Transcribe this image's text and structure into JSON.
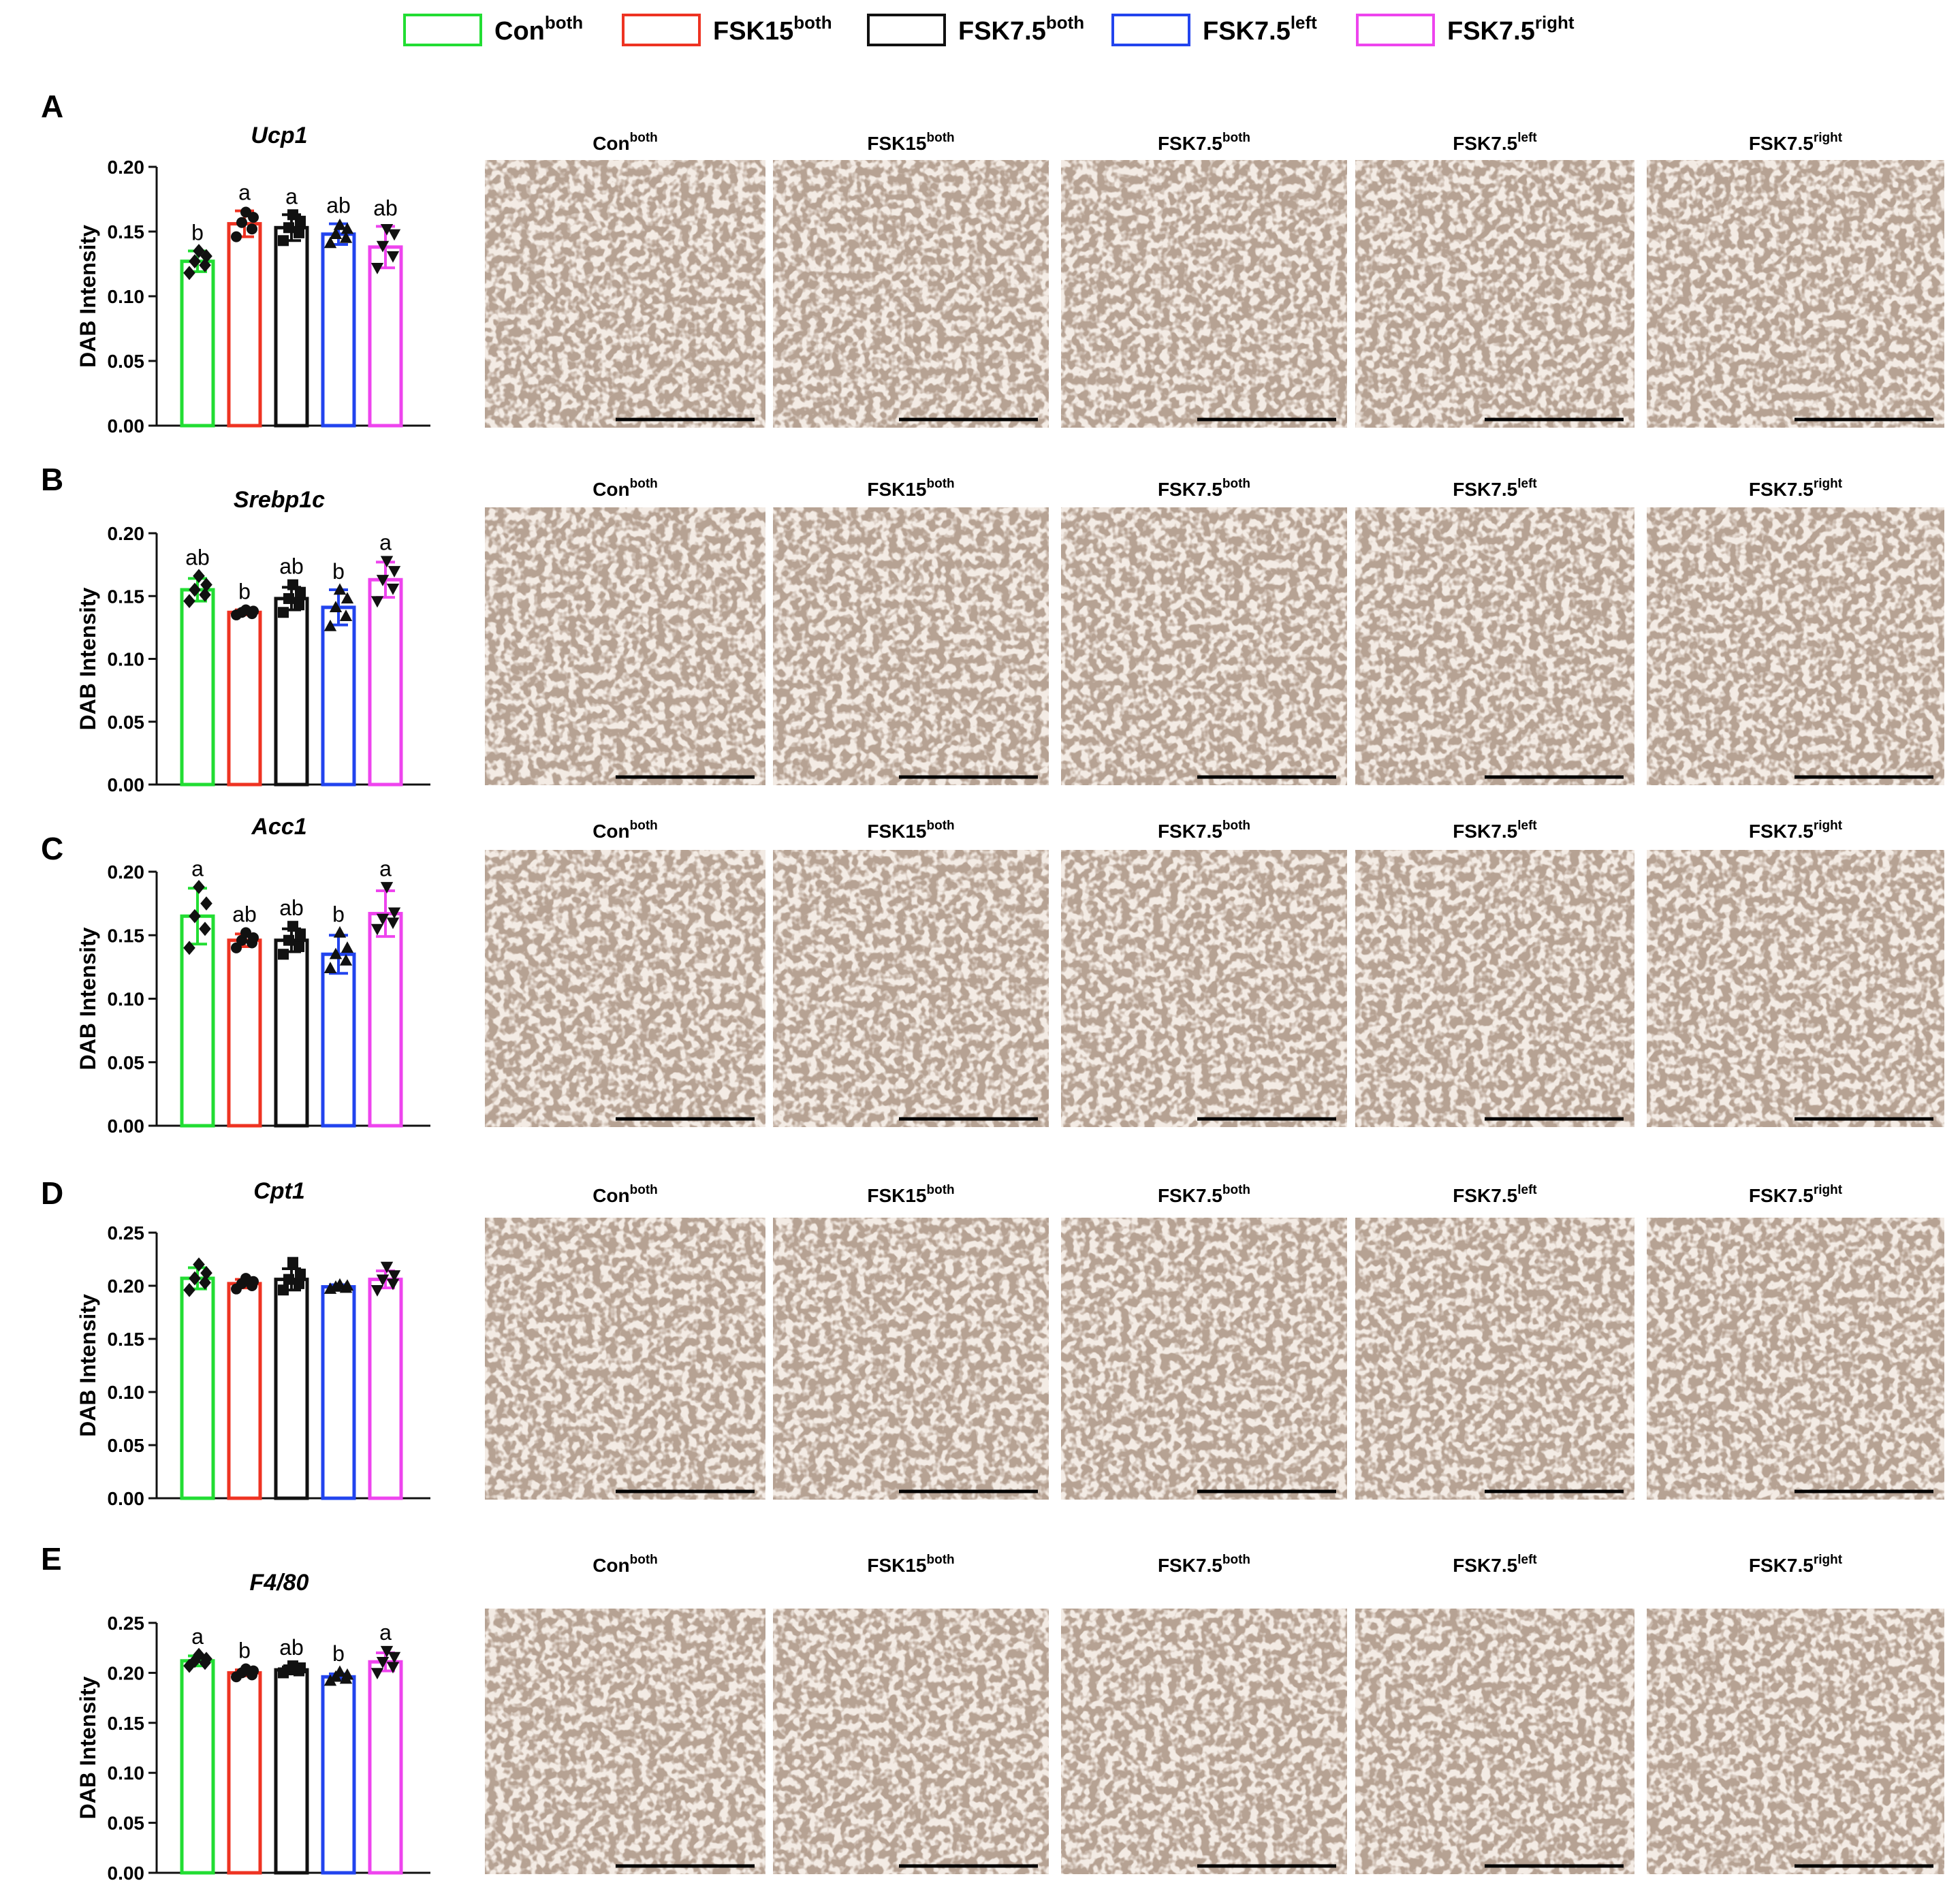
{
  "legend": [
    {
      "label": "Con",
      "sup": "both",
      "color": "#22dd33"
    },
    {
      "label": "FSK15",
      "sup": "both",
      "color": "#ee3322"
    },
    {
      "label": "FSK7.5",
      "sup": "both",
      "color": "#111111"
    },
    {
      "label": "FSK7.5",
      "sup": "left",
      "color": "#2244ee"
    },
    {
      "label": "FSK7.5",
      "sup": "right",
      "color": "#ee44ee"
    }
  ],
  "image_titles": [
    {
      "label": "Con",
      "sup": "both"
    },
    {
      "label": "FSK15",
      "sup": "both"
    },
    {
      "label": "FSK7.5",
      "sup": "both"
    },
    {
      "label": "FSK7.5",
      "sup": "left"
    },
    {
      "label": "FSK7.5",
      "sup": "right"
    }
  ],
  "chart_data": [
    {
      "type": "bar",
      "panel": "A",
      "title": "Ucp1",
      "ylabel": "DAB Intensity",
      "ylim": [
        0,
        0.2
      ],
      "yticks": [
        "0.00",
        "0.05",
        "0.10",
        "0.15",
        "0.20"
      ],
      "means": [
        0.127,
        0.156,
        0.153,
        0.148,
        0.138
      ],
      "errors": [
        0.008,
        0.01,
        0.01,
        0.008,
        0.016
      ],
      "letters": [
        "b",
        "a",
        "a",
        "ab",
        "ab"
      ],
      "marker": [
        "diamond",
        "circle",
        "square",
        "triangle",
        "triangle-down"
      ],
      "points": [
        [
          0.118,
          0.124,
          0.127,
          0.131,
          0.135
        ],
        [
          0.146,
          0.152,
          0.157,
          0.161,
          0.165
        ],
        [
          0.143,
          0.149,
          0.153,
          0.158,
          0.163
        ],
        [
          0.141,
          0.145,
          0.148,
          0.152,
          0.155
        ],
        [
          0.122,
          0.131,
          0.139,
          0.148,
          0.152
        ]
      ]
    },
    {
      "type": "bar",
      "panel": "B",
      "title": "Srebp1c",
      "ylabel": "DAB Intensity",
      "ylim": [
        0,
        0.2
      ],
      "yticks": [
        "0.00",
        "0.05",
        "0.10",
        "0.15",
        "0.20"
      ],
      "means": [
        0.155,
        0.137,
        0.148,
        0.141,
        0.163
      ],
      "errors": [
        0.009,
        0.002,
        0.009,
        0.014,
        0.014
      ],
      "letters": [
        "ab",
        "b",
        "ab",
        "b",
        "a"
      ],
      "marker": [
        "diamond",
        "circle",
        "square",
        "triangle",
        "triangle-down"
      ],
      "points": [
        [
          0.146,
          0.151,
          0.155,
          0.159,
          0.166
        ],
        [
          0.135,
          0.136,
          0.137,
          0.138,
          0.139
        ],
        [
          0.137,
          0.143,
          0.148,
          0.153,
          0.159
        ],
        [
          0.126,
          0.134,
          0.141,
          0.148,
          0.155
        ],
        [
          0.146,
          0.156,
          0.163,
          0.17,
          0.178
        ]
      ]
    },
    {
      "type": "bar",
      "panel": "C",
      "title": "Acc1",
      "ylabel": "DAB Intensity",
      "ylim": [
        0,
        0.2
      ],
      "yticks": [
        "0.00",
        "0.05",
        "0.10",
        "0.15",
        "0.20"
      ],
      "means": [
        0.165,
        0.146,
        0.146,
        0.135,
        0.167
      ],
      "errors": [
        0.022,
        0.005,
        0.009,
        0.015,
        0.018
      ],
      "letters": [
        "a",
        "ab",
        "ab",
        "b",
        "a"
      ],
      "marker": [
        "diamond",
        "circle",
        "square",
        "triangle",
        "triangle-down"
      ],
      "points": [
        [
          0.14,
          0.155,
          0.165,
          0.175,
          0.188
        ],
        [
          0.14,
          0.144,
          0.146,
          0.148,
          0.152
        ],
        [
          0.135,
          0.141,
          0.146,
          0.151,
          0.157
        ],
        [
          0.124,
          0.13,
          0.135,
          0.14,
          0.152
        ],
        [
          0.155,
          0.16,
          0.163,
          0.168,
          0.188
        ]
      ]
    },
    {
      "type": "bar",
      "panel": "D",
      "title": "Cpt1",
      "ylabel": "DAB Intensity",
      "ylim": [
        0,
        0.25
      ],
      "yticks": [
        "0.00",
        "0.05",
        "0.10",
        "0.15",
        "0.20",
        "0.25"
      ],
      "means": [
        0.207,
        0.202,
        0.206,
        0.199,
        0.206
      ],
      "errors": [
        0.01,
        0.004,
        0.01,
        0.002,
        0.008
      ],
      "letters": [
        "",
        "",
        "",
        "",
        ""
      ],
      "marker": [
        "diamond",
        "circle",
        "square",
        "triangle",
        "triangle-down"
      ],
      "points": [
        [
          0.196,
          0.203,
          0.207,
          0.212,
          0.22
        ],
        [
          0.197,
          0.2,
          0.202,
          0.204,
          0.207
        ],
        [
          0.196,
          0.202,
          0.206,
          0.211,
          0.222
        ],
        [
          0.197,
          0.198,
          0.199,
          0.2,
          0.201
        ],
        [
          0.196,
          0.202,
          0.206,
          0.21,
          0.218
        ]
      ]
    },
    {
      "type": "bar",
      "panel": "E",
      "title": "F4/80",
      "ylabel": "DAB Intensity",
      "ylim": [
        0,
        0.25
      ],
      "yticks": [
        "0.00",
        "0.05",
        "0.10",
        "0.15",
        "0.20",
        "0.25"
      ],
      "means": [
        0.212,
        0.2,
        0.203,
        0.196,
        0.211
      ],
      "errors": [
        0.005,
        0.003,
        0.003,
        0.003,
        0.009
      ],
      "letters": [
        "a",
        "b",
        "ab",
        "b",
        "a"
      ],
      "marker": [
        "diamond",
        "circle",
        "square",
        "triangle",
        "triangle-down"
      ],
      "points": [
        [
          0.207,
          0.21,
          0.212,
          0.214,
          0.218
        ],
        [
          0.196,
          0.198,
          0.2,
          0.202,
          0.204
        ],
        [
          0.2,
          0.202,
          0.203,
          0.205,
          0.207
        ],
        [
          0.192,
          0.194,
          0.196,
          0.198,
          0.201
        ],
        [
          0.2,
          0.206,
          0.211,
          0.216,
          0.222
        ]
      ]
    }
  ]
}
